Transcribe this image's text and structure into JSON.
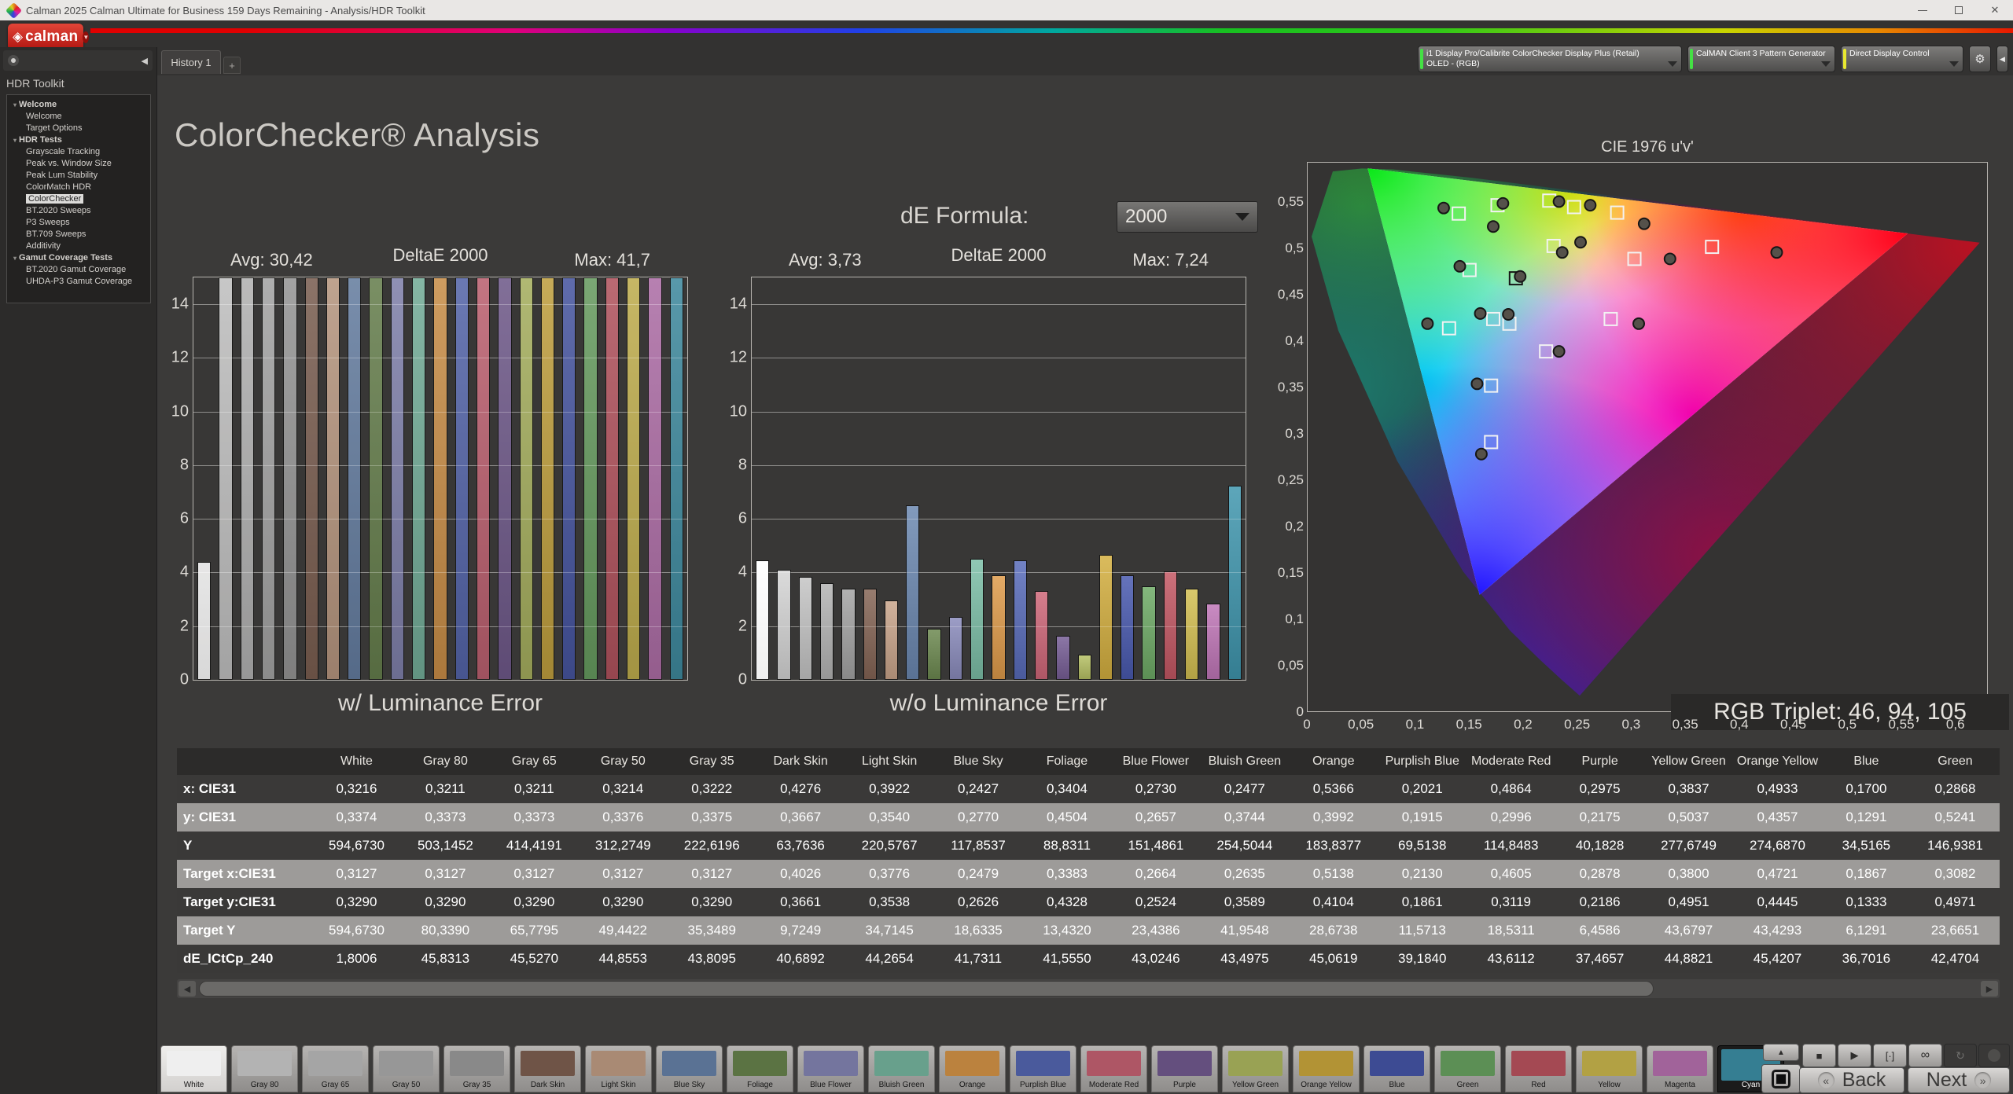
{
  "window": {
    "title": "Calman 2025 Calman Ultimate for Business 159 Days Remaining  - Analysis/HDR Toolkit"
  },
  "header": {
    "logo_text": "calman",
    "tab": "History 1",
    "tab_plus": "+",
    "selectors": [
      {
        "line1": "i1 Display Pro/Calibrite ColorChecker Display Plus (Retail)",
        "line2": "OLED - (RGB)",
        "status_color": "#44e044"
      },
      {
        "line1": "CalMAN Client 3 Pattern Generator",
        "line2": "",
        "status_color": "#44e044"
      },
      {
        "line1": "Direct Display Control",
        "line2": "",
        "status_color": "#e8e830"
      }
    ]
  },
  "sidebar": {
    "title": "HDR Toolkit",
    "tree": [
      {
        "label": "Welcome",
        "level": 0,
        "bold": true,
        "expander": true
      },
      {
        "label": "Welcome",
        "level": 1
      },
      {
        "label": "Target Options",
        "level": 1
      },
      {
        "label": "HDR Tests",
        "level": 0,
        "bold": true,
        "expander": true
      },
      {
        "label": "Grayscale Tracking",
        "level": 1
      },
      {
        "label": "Peak vs. Window Size",
        "level": 1
      },
      {
        "label": "Peak Lum Stability",
        "level": 1
      },
      {
        "label": "ColorMatch HDR",
        "level": 1
      },
      {
        "label": "ColorChecker",
        "level": 1,
        "selected": true
      },
      {
        "label": "BT.2020 Sweeps",
        "level": 1
      },
      {
        "label": "P3 Sweeps",
        "level": 1
      },
      {
        "label": "BT.709 Sweeps",
        "level": 1
      },
      {
        "label": "Additivity",
        "level": 1
      },
      {
        "label": "Gamut Coverage Tests",
        "level": 0,
        "bold": true,
        "expander": true
      },
      {
        "label": "BT.2020 Gamut Coverage",
        "level": 1
      },
      {
        "label": "UHDA-P3 Gamut Coverage",
        "level": 1
      }
    ]
  },
  "page": {
    "title": "ColorChecker® Analysis",
    "de_label": "dE Formula:",
    "de_value": "2000"
  },
  "palette": [
    {
      "name": "White",
      "color": "#efefef"
    },
    {
      "name": "Gray 80",
      "color": "#b3b3b3"
    },
    {
      "name": "Gray 65",
      "color": "#a5a5a5"
    },
    {
      "name": "Gray 50",
      "color": "#979797"
    },
    {
      "name": "Gray 35",
      "color": "#898989"
    },
    {
      "name": "Dark Skin",
      "color": "#6f5447"
    },
    {
      "name": "Light Skin",
      "color": "#a98a74"
    },
    {
      "name": "Blue Sky",
      "color": "#5a7294"
    },
    {
      "name": "Foliage",
      "color": "#5b7343"
    },
    {
      "name": "Blue Flower",
      "color": "#74759e"
    },
    {
      "name": "Bluish Green",
      "color": "#68a08c"
    },
    {
      "name": "Orange",
      "color": "#bb823e"
    },
    {
      "name": "Purplish Blue",
      "color": "#4a5a9c"
    },
    {
      "name": "Moderate Red",
      "color": "#ae5665"
    },
    {
      "name": "Purple",
      "color": "#644f7e"
    },
    {
      "name": "Yellow Green",
      "color": "#99a254"
    },
    {
      "name": "Orange Yellow",
      "color": "#b29335"
    },
    {
      "name": "Blue",
      "color": "#3d4b93"
    },
    {
      "name": "Green",
      "color": "#5c8f55"
    },
    {
      "name": "Red",
      "color": "#a44953"
    },
    {
      "name": "Yellow",
      "color": "#b2a144"
    },
    {
      "name": "Magenta",
      "color": "#a1639a"
    },
    {
      "name": "Cyan",
      "color": "#357e92"
    }
  ],
  "chart_data": [
    {
      "type": "bar",
      "title": "w/ Luminance Error",
      "stats": {
        "avg": "Avg: 30,42",
        "formula": "DeltaE 2000",
        "max": "Max: 41,7"
      },
      "categories": [
        "White",
        "Gray 80",
        "Gray 65",
        "Gray 50",
        "Gray 35",
        "Dark Skin",
        "Light Skin",
        "Blue Sky",
        "Foliage",
        "Blue Flower",
        "Bluish Green",
        "Orange",
        "Purplish Blue",
        "Moderate Red",
        "Purple",
        "Yellow Green",
        "Orange Yellow",
        "Blue",
        "Green",
        "Red",
        "Yellow",
        "Magenta",
        "Cyan"
      ],
      "values": [
        4.4,
        null,
        null,
        null,
        null,
        null,
        null,
        null,
        null,
        null,
        null,
        null,
        null,
        null,
        null,
        null,
        null,
        null,
        null,
        null,
        null,
        null,
        null
      ],
      "clipped": true,
      "ylim": [
        0,
        15
      ],
      "yticks": [
        0,
        2,
        4,
        6,
        8,
        10,
        12,
        14
      ]
    },
    {
      "type": "bar",
      "title": "w/o Luminance Error",
      "stats": {
        "avg": "Avg: 3,73",
        "formula": "DeltaE 2000",
        "max": "Max: 7,24"
      },
      "categories": [
        "White",
        "Gray 80",
        "Gray 65",
        "Gray 50",
        "Gray 35",
        "Dark Skin",
        "Light Skin",
        "Blue Sky",
        "Foliage",
        "Blue Flower",
        "Bluish Green",
        "Orange",
        "Purplish Blue",
        "Moderate Red",
        "Purple",
        "Yellow Green",
        "Orange Yellow",
        "Blue",
        "Green",
        "Red",
        "Yellow",
        "Magenta",
        "Cyan"
      ],
      "values": [
        4.45,
        4.1,
        3.85,
        3.6,
        3.4,
        3.4,
        2.95,
        6.5,
        1.9,
        2.35,
        4.5,
        3.9,
        4.45,
        3.3,
        1.65,
        0.95,
        4.65,
        3.9,
        3.5,
        4.05,
        3.4,
        2.85,
        7.24
      ],
      "clipped": false,
      "ylim": [
        0,
        15
      ],
      "yticks": [
        0,
        2,
        4,
        6,
        8,
        10,
        12,
        14
      ]
    },
    {
      "type": "scatter",
      "title": "CIE 1976 u'v'",
      "rgb_triplet": "RGB Triplet: 46, 94, 105",
      "xlim": [
        0,
        0.63
      ],
      "ylim": [
        0,
        0.593
      ],
      "x_tick_values": [
        0,
        0.05,
        0.1,
        0.15,
        0.2,
        0.25,
        0.3,
        0.35,
        0.4,
        0.45,
        0.5,
        0.55,
        0.6
      ],
      "x_tick_labels": [
        "0",
        "0,05",
        "0,1",
        "0,15",
        "0,2",
        "0,25",
        "0,3",
        "0,35",
        "0,4",
        "0,45",
        "0,5",
        "0,55",
        "0,6"
      ],
      "y_tick_values": [
        0,
        0.05,
        0.1,
        0.15,
        0.2,
        0.25,
        0.3,
        0.35,
        0.4,
        0.45,
        0.5,
        0.55
      ],
      "y_tick_labels": [
        "0",
        "0,05",
        "0,1",
        "0,15",
        "0,2",
        "0,25",
        "0,3",
        "0,35",
        "0,4",
        "0,45",
        "0,5",
        "0,55"
      ],
      "locus": [
        [
          0.2522,
          0.0169
        ],
        [
          0.2347,
          0.035
        ],
        [
          0.2161,
          0.0549
        ],
        [
          0.1877,
          0.0871
        ],
        [
          0.1441,
          0.151
        ],
        [
          0.0828,
          0.2708
        ],
        [
          0.0282,
          0.4117
        ],
        [
          0.0035,
          0.5131
        ],
        [
          0.0231,
          0.5836
        ],
        [
          0.0501,
          0.5867
        ],
        [
          0.0792,
          0.5856
        ],
        [
          0.1531,
          0.5766
        ],
        [
          0.2623,
          0.5604
        ],
        [
          0.4035,
          0.5393
        ],
        [
          0.5202,
          0.5219
        ],
        [
          0.6005,
          0.5099
        ],
        [
          0.6234,
          0.5065
        ]
      ],
      "gamut_triangle": [
        [
          0.0556,
          0.5868
        ],
        [
          0.5566,
          0.5165
        ],
        [
          0.1593,
          0.1258
        ]
      ],
      "targets": [
        {
          "u": 0.14,
          "v": 0.538
        },
        {
          "u": 0.176,
          "v": 0.547
        },
        {
          "u": 0.224,
          "v": 0.552
        },
        {
          "u": 0.247,
          "v": 0.545
        },
        {
          "u": 0.287,
          "v": 0.539
        },
        {
          "u": 0.228,
          "v": 0.503
        },
        {
          "u": 0.375,
          "v": 0.502
        },
        {
          "u": 0.303,
          "v": 0.489
        },
        {
          "u": 0.15,
          "v": 0.477
        },
        {
          "u": 0.193,
          "v": 0.468,
          "dark": true
        },
        {
          "u": 0.131,
          "v": 0.414
        },
        {
          "u": 0.172,
          "v": 0.424
        },
        {
          "u": 0.187,
          "v": 0.419
        },
        {
          "u": 0.281,
          "v": 0.424
        },
        {
          "u": 0.221,
          "v": 0.389
        },
        {
          "u": 0.17,
          "v": 0.352
        },
        {
          "u": 0.17,
          "v": 0.291
        }
      ],
      "measured": [
        {
          "u": 0.126,
          "v": 0.544
        },
        {
          "u": 0.181,
          "v": 0.549
        },
        {
          "u": 0.233,
          "v": 0.551
        },
        {
          "u": 0.262,
          "v": 0.547
        },
        {
          "u": 0.312,
          "v": 0.527
        },
        {
          "u": 0.172,
          "v": 0.524
        },
        {
          "u": 0.253,
          "v": 0.507
        },
        {
          "u": 0.236,
          "v": 0.496
        },
        {
          "u": 0.435,
          "v": 0.496
        },
        {
          "u": 0.336,
          "v": 0.489
        },
        {
          "u": 0.141,
          "v": 0.481
        },
        {
          "u": 0.197,
          "v": 0.47
        },
        {
          "u": 0.16,
          "v": 0.43
        },
        {
          "u": 0.186,
          "v": 0.429
        },
        {
          "u": 0.111,
          "v": 0.419
        },
        {
          "u": 0.307,
          "v": 0.419
        },
        {
          "u": 0.233,
          "v": 0.389
        },
        {
          "u": 0.157,
          "v": 0.354
        },
        {
          "u": 0.161,
          "v": 0.278
        }
      ]
    }
  ],
  "table": {
    "columns": [
      "White",
      "Gray 80",
      "Gray 65",
      "Gray 50",
      "Gray 35",
      "Dark Skin",
      "Light Skin",
      "Blue Sky",
      "Foliage",
      "Blue Flower",
      "Bluish Green",
      "Orange",
      "Purplish Blue",
      "Moderate Red",
      "Purple",
      "Yellow Green",
      "Orange Yellow",
      "Blue",
      "Green"
    ],
    "row_labels": [
      "x: CIE31",
      "y: CIE31",
      "Y",
      "Target x:CIE31",
      "Target y:CIE31",
      "Target Y",
      "dE_ICtCp_240"
    ],
    "rows": [
      [
        "0,3216",
        "0,3211",
        "0,3211",
        "0,3214",
        "0,3222",
        "0,4276",
        "0,3922",
        "0,2427",
        "0,3404",
        "0,2730",
        "0,2477",
        "0,5366",
        "0,2021",
        "0,4864",
        "0,2975",
        "0,3837",
        "0,4933",
        "0,1700",
        "0,2868"
      ],
      [
        "0,3374",
        "0,3373",
        "0,3373",
        "0,3376",
        "0,3375",
        "0,3667",
        "0,3540",
        "0,2770",
        "0,4504",
        "0,2657",
        "0,3744",
        "0,3992",
        "0,1915",
        "0,2996",
        "0,2175",
        "0,5037",
        "0,4357",
        "0,1291",
        "0,5241"
      ],
      [
        "594,6730",
        "503,1452",
        "414,4191",
        "312,2749",
        "222,6196",
        "63,7636",
        "220,5767",
        "117,8537",
        "88,8311",
        "151,4861",
        "254,5044",
        "183,8377",
        "69,5138",
        "114,8483",
        "40,1828",
        "277,6749",
        "274,6870",
        "34,5165",
        "146,9381"
      ],
      [
        "0,3127",
        "0,3127",
        "0,3127",
        "0,3127",
        "0,3127",
        "0,4026",
        "0,3776",
        "0,2479",
        "0,3383",
        "0,2664",
        "0,2635",
        "0,5138",
        "0,2130",
        "0,4605",
        "0,2878",
        "0,3800",
        "0,4721",
        "0,1867",
        "0,3082"
      ],
      [
        "0,3290",
        "0,3290",
        "0,3290",
        "0,3290",
        "0,3290",
        "0,3661",
        "0,3538",
        "0,2626",
        "0,4328",
        "0,2524",
        "0,3589",
        "0,4104",
        "0,1861",
        "0,3119",
        "0,2186",
        "0,4951",
        "0,4445",
        "0,1333",
        "0,4971"
      ],
      [
        "594,6730",
        "80,3390",
        "65,7795",
        "49,4422",
        "35,3489",
        "9,7249",
        "34,7145",
        "18,6335",
        "13,4320",
        "23,4386",
        "41,9548",
        "28,6738",
        "11,5713",
        "18,5311",
        "6,4586",
        "43,6797",
        "43,4293",
        "6,1291",
        "23,6651"
      ],
      [
        "1,8006",
        "45,8313",
        "45,5270",
        "44,8553",
        "43,8095",
        "40,6892",
        "44,2654",
        "41,7311",
        "41,5550",
        "43,0246",
        "43,4975",
        "45,0619",
        "39,1840",
        "43,6112",
        "37,4657",
        "44,8821",
        "45,4207",
        "36,7016",
        "42,4704"
      ]
    ]
  },
  "swatch_bar": {
    "highlighted": "White",
    "active": "Cyan"
  },
  "transport": {
    "up": "▲",
    "stop": "■",
    "play": "▶",
    "single": "[·]",
    "loop": "∞",
    "refresh": "↻"
  },
  "nav": {
    "back_label": "Back",
    "next_label": "Next",
    "back_chev": "«",
    "next_chev": "»"
  }
}
